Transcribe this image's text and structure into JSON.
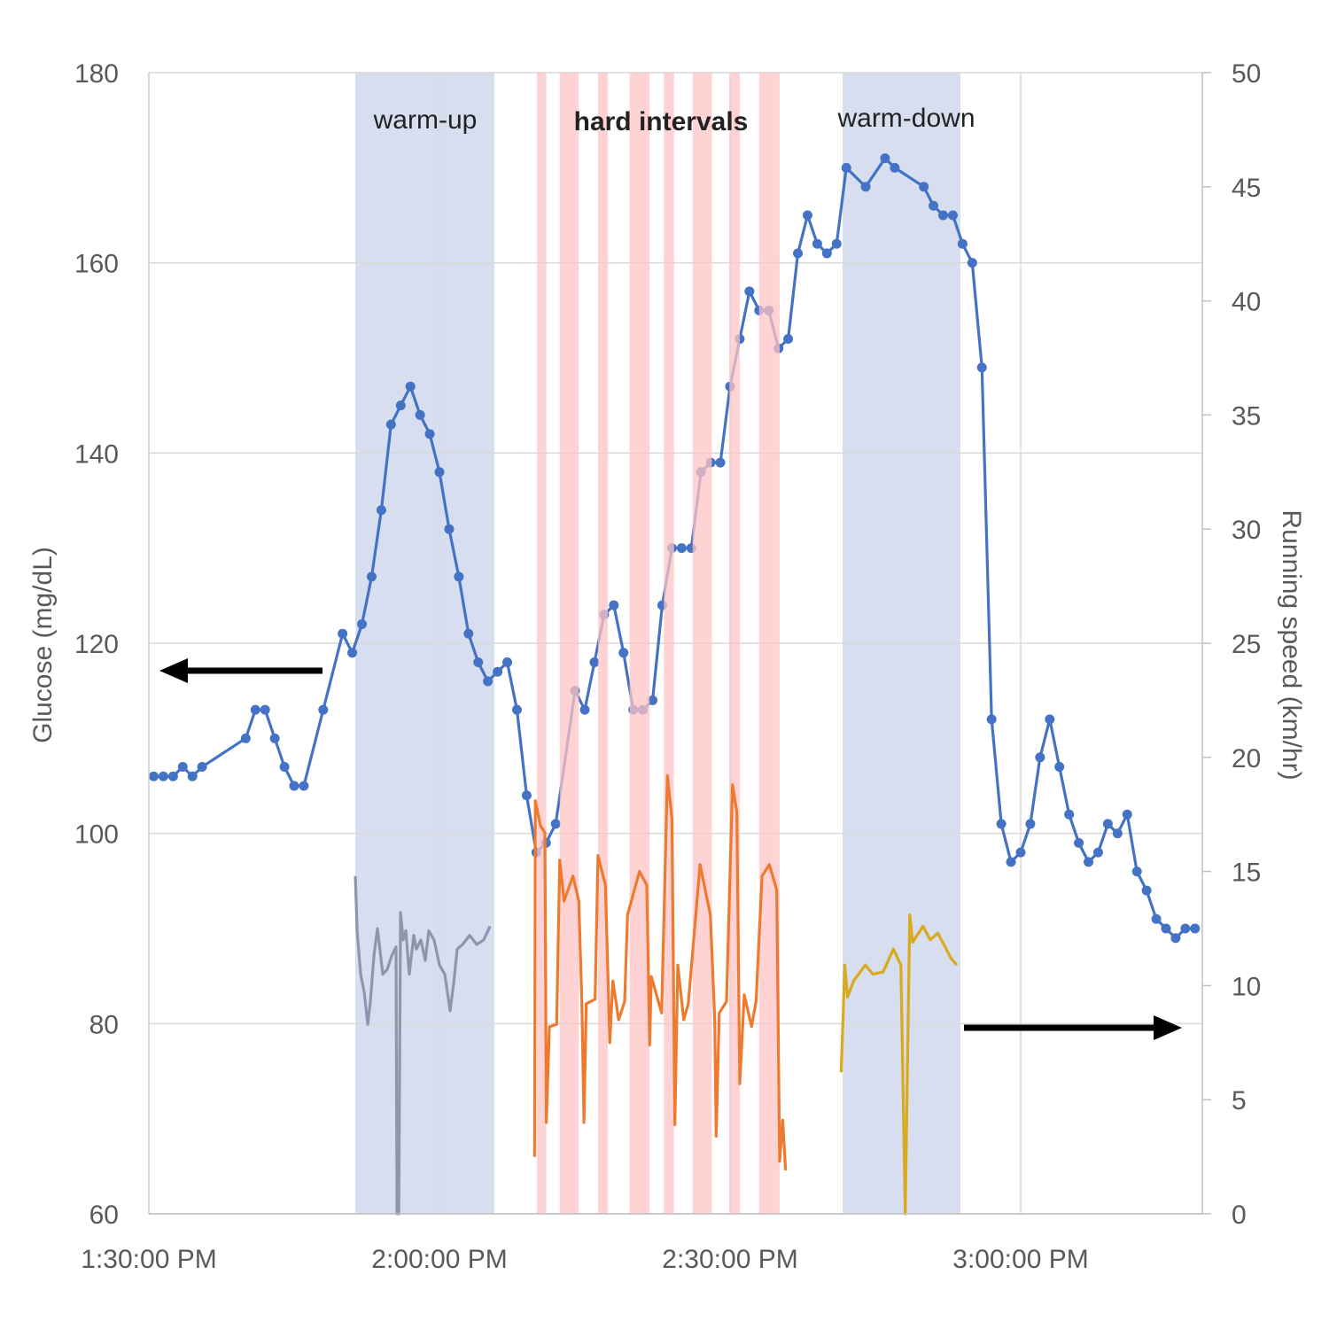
{
  "chart_data": {
    "type": "line",
    "xlabel": "",
    "ylabel": "Glucose (mg/dL)",
    "y2label": "Running speed (km/hr)",
    "xlim": [
      "1:30:00 PM",
      "3:18:45 PM"
    ],
    "ylim": [
      60,
      180
    ],
    "y2lim": [
      0,
      50
    ],
    "x_ticks": [
      "1:30:00 PM",
      "2:00:00 PM",
      "2:30:00 PM",
      "3:00:00 PM"
    ],
    "y_ticks": [
      60,
      80,
      100,
      120,
      140,
      160,
      180
    ],
    "y2_ticks": [
      0,
      5,
      10,
      15,
      20,
      25,
      30,
      35,
      40,
      45,
      50
    ],
    "grid": true,
    "colors": {
      "glucose": "#4472C4",
      "warmup_speed": "#8D97AB",
      "intervals_speed": "#EE7A30",
      "warmdown_speed": "#D9A91E",
      "easy_band": "#D6DEF0",
      "hard_band": "#FFC4C4",
      "axis_text": "#595959"
    },
    "annotations": {
      "warmup": "warm-up",
      "intervals": "hard intervals",
      "warmdown": "warm-down"
    },
    "arrows": [
      {
        "points_to": "left axis"
      },
      {
        "points_to": "right axis"
      }
    ],
    "bands": {
      "easy": [
        [
          "1:51:19 PM",
          "2:05:40 PM"
        ],
        [
          "2:41:37 PM",
          "2:53:47 PM"
        ]
      ],
      "hard": [
        [
          "2:10:04 PM",
          "2:11:02 PM"
        ],
        [
          "2:12:25 PM",
          "2:14:23 PM"
        ],
        [
          "2:16:22 PM",
          "2:17:23 PM"
        ],
        [
          "2:19:38 PM",
          "2:21:42 PM"
        ],
        [
          "2:23:10 PM",
          "2:24:13 PM"
        ],
        [
          "2:26:08 PM",
          "2:28:07 PM"
        ],
        [
          "2:29:56 PM",
          "2:31:00 PM"
        ],
        [
          "2:33:00 PM",
          "2:35:07 PM"
        ]
      ]
    },
    "glucose": {
      "axis": "left",
      "points": [
        [
          "1:30:30 PM",
          106
        ],
        [
          "1:31:30 PM",
          106
        ],
        [
          "1:32:30 PM",
          106
        ],
        [
          "1:33:30 PM",
          107
        ],
        [
          "1:34:30 PM",
          106
        ],
        [
          "1:35:30 PM",
          107
        ],
        [
          "1:40:00 PM",
          110
        ],
        [
          "1:41:00 PM",
          113
        ],
        [
          "1:42:00 PM",
          113
        ],
        [
          "1:43:00 PM",
          110
        ],
        [
          "1:44:00 PM",
          107
        ],
        [
          "1:45:00 PM",
          105
        ],
        [
          "1:46:00 PM",
          105
        ],
        [
          "1:48:00 PM",
          113
        ],
        [
          "1:50:00 PM",
          121
        ],
        [
          "1:51:00 PM",
          119
        ],
        [
          "1:52:00 PM",
          122
        ],
        [
          "1:53:00 PM",
          127
        ],
        [
          "1:54:00 PM",
          134
        ],
        [
          "1:55:00 PM",
          143
        ],
        [
          "1:56:00 PM",
          145
        ],
        [
          "1:57:00 PM",
          147
        ],
        [
          "1:58:00 PM",
          144
        ],
        [
          "1:59:00 PM",
          142
        ],
        [
          "2:00:00 PM",
          138
        ],
        [
          "2:01:00 PM",
          132
        ],
        [
          "2:02:00 PM",
          127
        ],
        [
          "2:03:00 PM",
          121
        ],
        [
          "2:04:00 PM",
          118
        ],
        [
          "2:05:00 PM",
          116
        ],
        [
          "2:06:00 PM",
          117
        ],
        [
          "2:07:00 PM",
          118
        ],
        [
          "2:08:00 PM",
          113
        ],
        [
          "2:09:00 PM",
          104
        ],
        [
          "2:10:00 PM",
          98
        ],
        [
          "2:11:00 PM",
          99
        ],
        [
          "2:12:00 PM",
          101
        ],
        [
          "2:14:00 PM",
          115
        ],
        [
          "2:15:00 PM",
          113
        ],
        [
          "2:16:00 PM",
          118
        ],
        [
          "2:17:00 PM",
          123
        ],
        [
          "2:18:00 PM",
          124
        ],
        [
          "2:19:00 PM",
          119
        ],
        [
          "2:20:00 PM",
          113
        ],
        [
          "2:21:00 PM",
          113
        ],
        [
          "2:22:00 PM",
          114
        ],
        [
          "2:23:00 PM",
          124
        ],
        [
          "2:24:00 PM",
          130
        ],
        [
          "2:25:00 PM",
          130
        ],
        [
          "2:26:00 PM",
          130
        ],
        [
          "2:27:00 PM",
          138
        ],
        [
          "2:28:00 PM",
          139
        ],
        [
          "2:29:00 PM",
          139
        ],
        [
          "2:30:00 PM",
          147
        ],
        [
          "2:31:00 PM",
          152
        ],
        [
          "2:32:00 PM",
          157
        ],
        [
          "2:33:00 PM",
          155
        ],
        [
          "2:34:00 PM",
          155
        ],
        [
          "2:35:00 PM",
          151
        ],
        [
          "2:36:00 PM",
          152
        ],
        [
          "2:37:00 PM",
          161
        ],
        [
          "2:38:00 PM",
          165
        ],
        [
          "2:39:00 PM",
          162
        ],
        [
          "2:40:00 PM",
          161
        ],
        [
          "2:41:00 PM",
          162
        ],
        [
          "2:42:00 PM",
          170
        ],
        [
          "2:44:00 PM",
          168
        ],
        [
          "2:46:00 PM",
          171
        ],
        [
          "2:47:00 PM",
          170
        ],
        [
          "2:50:00 PM",
          168
        ],
        [
          "2:51:00 PM",
          166
        ],
        [
          "2:52:00 PM",
          165
        ],
        [
          "2:53:00 PM",
          165
        ],
        [
          "2:54:00 PM",
          162
        ],
        [
          "2:55:00 PM",
          160
        ],
        [
          "2:56:00 PM",
          149
        ],
        [
          "2:57:00 PM",
          112
        ],
        [
          "2:58:00 PM",
          101
        ],
        [
          "2:59:00 PM",
          97
        ],
        [
          "3:00:00 PM",
          98
        ],
        [
          "3:01:00 PM",
          101
        ],
        [
          "3:02:00 PM",
          108
        ],
        [
          "3:03:00 PM",
          112
        ],
        [
          "3:04:00 PM",
          107
        ],
        [
          "3:05:00 PM",
          102
        ],
        [
          "3:06:00 PM",
          99
        ],
        [
          "3:07:00 PM",
          97
        ],
        [
          "3:08:00 PM",
          98
        ],
        [
          "3:09:00 PM",
          101
        ],
        [
          "3:10:00 PM",
          100
        ],
        [
          "3:11:00 PM",
          102
        ],
        [
          "3:12:00 PM",
          96
        ],
        [
          "3:13:00 PM",
          94
        ],
        [
          "3:14:00 PM",
          91
        ],
        [
          "3:15:00 PM",
          90
        ],
        [
          "3:16:00 PM",
          89
        ],
        [
          "3:17:00 PM",
          90
        ],
        [
          "3:18:00 PM",
          90
        ]
      ]
    },
    "speed_series": [
      {
        "key": "warmup_speed",
        "axis": "right",
        "points": [
          [
            "1:51:19 PM",
            14.8
          ],
          [
            "1:51:30 PM",
            12.4
          ],
          [
            "1:51:52 PM",
            10.5
          ],
          [
            "1:52:14 PM",
            9.7
          ],
          [
            "1:52:36 PM",
            8.3
          ],
          [
            "1:52:52 PM",
            9.3
          ],
          [
            "1:53:14 PM",
            11.3
          ],
          [
            "1:53:36 PM",
            12.5
          ],
          [
            "1:54:09 PM",
            10.5
          ],
          [
            "1:54:36 PM",
            10.7
          ],
          [
            "1:55:04 PM",
            11.3
          ],
          [
            "1:55:31 PM",
            11.7
          ],
          [
            "1:55:37 PM",
            0
          ],
          [
            "1:55:48 PM",
            0
          ],
          [
            "1:55:59 PM",
            13.2
          ],
          [
            "1:56:15 PM",
            12.0
          ],
          [
            "1:56:32 PM",
            12.4
          ],
          [
            "1:56:53 PM",
            10.5
          ],
          [
            "1:57:21 PM",
            12.2
          ],
          [
            "1:57:37 PM",
            11.6
          ],
          [
            "1:58:05 PM",
            12.0
          ],
          [
            "1:58:32 PM",
            11.1
          ],
          [
            "1:58:54 PM",
            12.4
          ],
          [
            "1:59:27 PM",
            12.0
          ],
          [
            "2:00:00 PM",
            10.9
          ],
          [
            "2:00:33 PM",
            10.5
          ],
          [
            "2:01:06 PM",
            8.9
          ],
          [
            "2:01:28 PM",
            10.1
          ],
          [
            "2:01:50 PM",
            11.6
          ],
          [
            "2:02:23 PM",
            11.8
          ],
          [
            "2:03:07 PM",
            12.2
          ],
          [
            "2:03:51 PM",
            11.8
          ],
          [
            "2:04:34 PM",
            12.0
          ],
          [
            "2:05:13 PM",
            12.6
          ]
        ]
      },
      {
        "key": "intervals_speed",
        "axis": "right",
        "points": [
          [
            "2:09:49 PM",
            2.5
          ],
          [
            "2:09:54 PM",
            18.1
          ],
          [
            "2:10:26 PM",
            17.0
          ],
          [
            "2:10:53 PM",
            16.7
          ],
          [
            "2:11:02 PM",
            4.0
          ],
          [
            "2:11:21 PM",
            8.2
          ],
          [
            "2:12:06 PM",
            8.3
          ],
          [
            "2:12:25 PM",
            15.5
          ],
          [
            "2:12:52 PM",
            13.7
          ],
          [
            "2:13:47 PM",
            14.8
          ],
          [
            "2:14:23 PM",
            13.7
          ],
          [
            "2:14:42 PM",
            9.3
          ],
          [
            "2:14:55 PM",
            4.0
          ],
          [
            "2:15:09 PM",
            9.2
          ],
          [
            "2:16:04 PM",
            9.4
          ],
          [
            "2:16:22 PM",
            15.7
          ],
          [
            "2:17:08 PM",
            14.4
          ],
          [
            "2:17:35 PM",
            7.5
          ],
          [
            "2:17:54 PM",
            10.2
          ],
          [
            "2:18:30 PM",
            8.5
          ],
          [
            "2:19:07 PM",
            9.3
          ],
          [
            "2:19:25 PM",
            13.1
          ],
          [
            "2:20:39 PM",
            15.0
          ],
          [
            "2:21:24 PM",
            14.4
          ],
          [
            "2:21:42 PM",
            7.4
          ],
          [
            "2:21:52 PM",
            10.4
          ],
          [
            "2:22:56 PM",
            8.8
          ],
          [
            "2:23:32 PM",
            19.2
          ],
          [
            "2:24:00 PM",
            17.3
          ],
          [
            "2:24:18 PM",
            3.9
          ],
          [
            "2:24:36 PM",
            10.9
          ],
          [
            "2:25:13 PM",
            8.5
          ],
          [
            "2:25:41 PM",
            9.2
          ],
          [
            "2:26:54 PM",
            15.3
          ],
          [
            "2:27:58 PM",
            13.1
          ],
          [
            "2:28:25 PM",
            8.5
          ],
          [
            "2:28:34 PM",
            3.4
          ],
          [
            "2:28:53 PM",
            8.8
          ],
          [
            "2:29:38 PM",
            9.3
          ],
          [
            "2:30:15 PM",
            18.8
          ],
          [
            "2:30:42 PM",
            17.6
          ],
          [
            "2:31:00 PM",
            5.7
          ],
          [
            "2:31:28 PM",
            9.6
          ],
          [
            "2:32:13 PM",
            8.2
          ],
          [
            "2:32:41 PM",
            9.3
          ],
          [
            "2:33:18 PM",
            14.8
          ],
          [
            "2:34:03 PM",
            15.3
          ],
          [
            "2:34:49 PM",
            14.2
          ],
          [
            "2:35:07 PM",
            2.3
          ],
          [
            "2:35:26 PM",
            4.1
          ],
          [
            "2:35:44 PM",
            1.9
          ]
        ]
      },
      {
        "key": "warmdown_speed",
        "axis": "right",
        "points": [
          [
            "2:41:28 PM",
            6.2
          ],
          [
            "2:41:41 PM",
            8.8
          ],
          [
            "2:41:50 PM",
            10.9
          ],
          [
            "2:42:08 PM",
            9.5
          ],
          [
            "2:42:45 PM",
            10.2
          ],
          [
            "2:43:58 PM",
            10.9
          ],
          [
            "2:44:44 PM",
            10.5
          ],
          [
            "2:45:48 PM",
            10.6
          ],
          [
            "2:46:52 PM",
            11.6
          ],
          [
            "2:47:38 PM",
            10.9
          ],
          [
            "2:48:05 PM",
            0
          ],
          [
            "2:48:33 PM",
            13.1
          ],
          [
            "2:48:51 PM",
            11.9
          ],
          [
            "2:49:55 PM",
            12.6
          ],
          [
            "2:50:40 PM",
            12.0
          ],
          [
            "2:51:26 PM",
            12.3
          ],
          [
            "2:52:12 PM",
            11.7
          ],
          [
            "2:52:48 PM",
            11.2
          ],
          [
            "2:53:25 PM",
            10.9
          ]
        ]
      }
    ]
  }
}
